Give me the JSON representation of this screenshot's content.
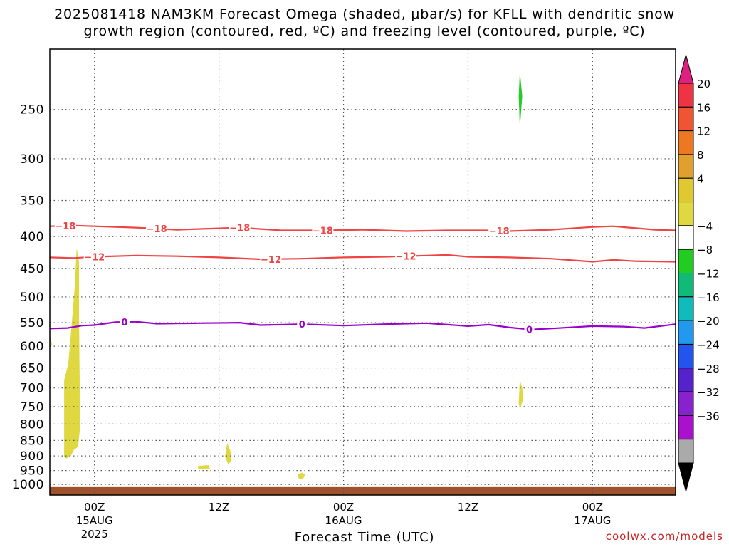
{
  "title_line1": "2025081418 NAM3KM Forecast Omega (shaded, μbar/s) for KFLL with dendritic snow",
  "title_line2": "growth region (contoured, red, ºC) and freezing level (contoured, purple, ºC)",
  "credit": "coolwx.com/models",
  "chart_data": {
    "type": "time-height contour",
    "title": "2025081418 NAM3KM Forecast Omega (shaded, μbar/s) for KFLL with dendritic snow growth region (contoured, red, ºC) and freezing level (contoured, purple, ºC)",
    "xlabel": "Forecast Time (UTC)",
    "ylabel": "",
    "x_range_hours": [
      -4.3,
      56
    ],
    "x_ticks": [
      {
        "hours": 0,
        "label": "00Z",
        "sub1": "15AUG",
        "sub2": "2025"
      },
      {
        "hours": 12,
        "label": "12Z",
        "sub1": "",
        "sub2": ""
      },
      {
        "hours": 24,
        "label": "00Z",
        "sub1": "16AUG",
        "sub2": ""
      },
      {
        "hours": 36,
        "label": "12Z",
        "sub1": "",
        "sub2": ""
      },
      {
        "hours": 48,
        "label": "00Z",
        "sub1": "17AUG",
        "sub2": ""
      }
    ],
    "y_scale": "log pressure (hPa), inverted",
    "y_range_hpa": [
      1040,
      200
    ],
    "y_ticks": [
      250,
      300,
      350,
      400,
      450,
      500,
      550,
      600,
      650,
      700,
      750,
      800,
      850,
      900,
      950,
      1000
    ],
    "grid": "dotted",
    "contours": [
      {
        "name": "-18",
        "color": "#ee4444",
        "labels_at_hours": [
          -2.8,
          6,
          14,
          22,
          39
        ],
        "points": [
          [
            -4.3,
            385
          ],
          [
            -2,
            384
          ],
          [
            0,
            385
          ],
          [
            4,
            387
          ],
          [
            8,
            390
          ],
          [
            10,
            389
          ],
          [
            14,
            387
          ],
          [
            18,
            391
          ],
          [
            22,
            391
          ],
          [
            26,
            390
          ],
          [
            30,
            392
          ],
          [
            34,
            391
          ],
          [
            38,
            391
          ],
          [
            40,
            392
          ],
          [
            44,
            390
          ],
          [
            48,
            386
          ],
          [
            50,
            385
          ],
          [
            54,
            390
          ],
          [
            56,
            391
          ]
        ]
      },
      {
        "name": "-12",
        "color": "#ee4444",
        "labels_at_hours": [
          0,
          17,
          30
        ],
        "points": [
          [
            -4.3,
            432
          ],
          [
            -2,
            433
          ],
          [
            0,
            431
          ],
          [
            4,
            429
          ],
          [
            8,
            430
          ],
          [
            12,
            432
          ],
          [
            16,
            435
          ],
          [
            20,
            434
          ],
          [
            24,
            432
          ],
          [
            28,
            431
          ],
          [
            32,
            429
          ],
          [
            34,
            428
          ],
          [
            36,
            431
          ],
          [
            40,
            432
          ],
          [
            44,
            434
          ],
          [
            48,
            439
          ],
          [
            50,
            436
          ],
          [
            52,
            438
          ],
          [
            56,
            439
          ]
        ]
      },
      {
        "name": "0",
        "color": "#9900cc",
        "labels_at_hours": [
          2.9,
          20,
          41.9
        ],
        "points": [
          [
            -4.3,
            562
          ],
          [
            -2.6,
            561
          ],
          [
            -1.2,
            556
          ],
          [
            0,
            555
          ],
          [
            2,
            549
          ],
          [
            4,
            548
          ],
          [
            6,
            552
          ],
          [
            10,
            551
          ],
          [
            14,
            550
          ],
          [
            16,
            555
          ],
          [
            20,
            553
          ],
          [
            24,
            556
          ],
          [
            28,
            553
          ],
          [
            32,
            551
          ],
          [
            36,
            557
          ],
          [
            38,
            554
          ],
          [
            40,
            560
          ],
          [
            42,
            564
          ],
          [
            44,
            562
          ],
          [
            48,
            557
          ],
          [
            51,
            558
          ],
          [
            53,
            561
          ],
          [
            56,
            553
          ]
        ]
      }
    ],
    "shaded_regions": [
      {
        "category": "4",
        "color": "#e0d840",
        "points": [
          [
            -4.3,
            575
          ],
          [
            -4.1,
            598
          ],
          [
            -4.3,
            598
          ]
        ]
      },
      {
        "category": "4",
        "color": "#e0d840",
        "points": [
          [
            -2.9,
            902
          ],
          [
            -2.9,
            680
          ],
          [
            -2.5,
            640
          ],
          [
            -2.2,
            560
          ],
          [
            -1.9,
            485
          ],
          [
            -1.7,
            420
          ],
          [
            -1.5,
            440
          ],
          [
            -1.5,
            540
          ],
          [
            -1.4,
            810
          ],
          [
            -1.6,
            870
          ],
          [
            -2.0,
            880
          ],
          [
            -2.3,
            900
          ],
          [
            -2.7,
            908
          ]
        ]
      },
      {
        "category": "4",
        "color": "#e0d840",
        "points": [
          [
            10.0,
            934
          ],
          [
            11.0,
            932
          ],
          [
            11.1,
            943
          ],
          [
            10.0,
            945
          ]
        ]
      },
      {
        "category": "4",
        "color": "#e0d840",
        "points": [
          [
            12.6,
            902
          ],
          [
            12.8,
            860
          ],
          [
            13.1,
            886
          ],
          [
            13.2,
            914
          ],
          [
            12.9,
            928
          ]
        ]
      },
      {
        "category": "4",
        "color": "#e0d840",
        "points": [
          [
            19.6,
            964
          ],
          [
            20.0,
            958
          ],
          [
            20.3,
            966
          ],
          [
            20.1,
            978
          ],
          [
            19.7,
            978
          ]
        ]
      },
      {
        "category": "4",
        "color": "#e0d840",
        "points": [
          [
            40.9,
            740
          ],
          [
            41.0,
            682
          ],
          [
            41.2,
            700
          ],
          [
            41.3,
            730
          ],
          [
            41.0,
            755
          ]
        ]
      },
      {
        "category": "-4",
        "color": "#22cc22",
        "points": [
          [
            40.9,
            238
          ],
          [
            41.0,
            219
          ],
          [
            41.2,
            238
          ],
          [
            41.0,
            265
          ]
        ]
      }
    ],
    "ground": {
      "color": "#a0522d",
      "top_hpa": 1010
    },
    "colorbar": {
      "labels": [
        "20",
        "16",
        "12",
        "8",
        "4",
        "−4",
        "−8",
        "−12",
        "−16",
        "−20",
        "−24",
        "−28",
        "−32",
        "−36"
      ],
      "colors": [
        "#ee3344",
        "#ee5533",
        "#ee7722",
        "#e0a030",
        "#e0c830",
        "#e0d840",
        "#ffffff",
        "#22cc22",
        "#11bb77",
        "#11bbbb",
        "#2299ee",
        "#2255ee",
        "#5522cc",
        "#8822cc",
        "#aa11cc",
        "#aaaaaa"
      ],
      "top_triangle_color": "#e02080",
      "bottom_triangle_color": "#000000"
    }
  }
}
